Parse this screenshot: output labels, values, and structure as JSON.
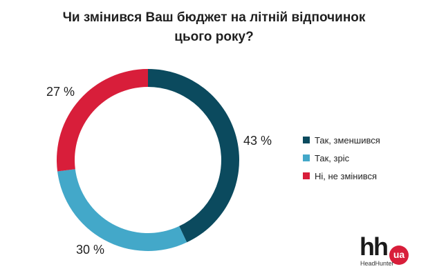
{
  "chart_data": {
    "type": "pie",
    "title_lines": [
      "Чи змінився Ваш бюджет на літній відпочинок",
      "цього року?"
    ],
    "categories": [
      "Так, зменшився",
      "Так, зріс",
      "Ні, не змінився"
    ],
    "values": [
      43,
      30,
      27
    ],
    "value_labels": [
      "43 %",
      "30 %",
      "27 %"
    ],
    "colors": [
      "#0b4a5e",
      "#43a8c9",
      "#d81e3a"
    ],
    "legend_position": "right"
  },
  "logo": {
    "text": "hh",
    "badge": "ua",
    "subtitle": "HeadHunter",
    "badge_color": "#d81e3a"
  }
}
